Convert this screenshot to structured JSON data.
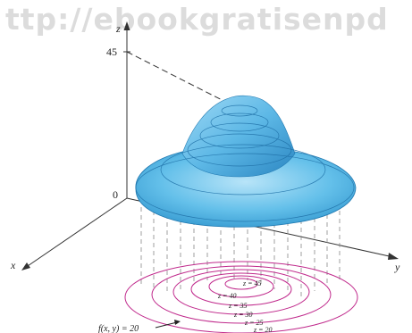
{
  "watermark": "ttp://ebookgratisenpd",
  "axes": {
    "z_label": "z",
    "x_label": "x",
    "y_label": "y"
  },
  "ticks": {
    "z_top": "45",
    "origin": "0"
  },
  "surface": {
    "function_label": "f(x, y) = 20",
    "color": "#5ab8e8",
    "shade": "#2f8fc8"
  },
  "contours": {
    "color": "#c02a8c",
    "labels": [
      "z = 45",
      "z = 40",
      "z = 35",
      "z = 30",
      "z = 25",
      "z = 20"
    ]
  }
}
